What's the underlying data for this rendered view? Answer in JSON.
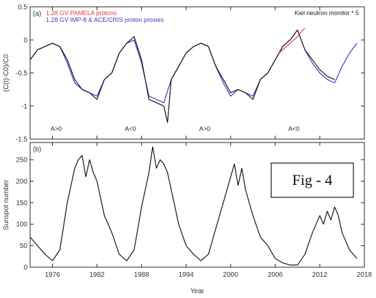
{
  "chart_data": [
    {
      "type": "line",
      "panel": "(a)",
      "ylabel": "(C(t)-C0)/C0",
      "xlim": [
        1973,
        2018
      ],
      "ylim": [
        -1.5,
        0.5
      ],
      "yticks": [
        "0.5",
        "0",
        "-0.5",
        "-1",
        "-1.5"
      ],
      "ytick_values": [
        0.5,
        0,
        -0.5,
        -1,
        -1.5
      ],
      "grid": false,
      "legend_position": "top",
      "legend": [
        {
          "label": "1.28 GV PAMELA protons",
          "color": "#e03a3a"
        },
        {
          "label": "1.28 GV IMP-8 & ACE/CRIS proton proxies",
          "color": "#3a3acc"
        }
      ],
      "annotation_top_right": "Kiel neutron monitor * 5",
      "polarity_labels": [
        {
          "text": "A>0",
          "x": 1976.5
        },
        {
          "text": "A<0",
          "x": 1986.5
        },
        {
          "text": "A>0",
          "x": 1996.5
        },
        {
          "text": "A<0",
          "x": 2008.5
        }
      ],
      "series": [
        {
          "name": "Kiel neutron monitor * 5",
          "color": "#111111",
          "x": [
            1973,
            1974,
            1975,
            1976,
            1977,
            1978,
            1979,
            1980,
            1981,
            1982,
            1983,
            1984,
            1985,
            1986,
            1987,
            1988,
            1989,
            1990,
            1991,
            1991.5,
            1992,
            1993,
            1994,
            1995,
            1996,
            1997,
            1998,
            1999,
            2000,
            2001,
            2002,
            2003,
            2004,
            2005,
            2006,
            2007,
            2008,
            2009,
            2010,
            2011,
            2012,
            2013,
            2014
          ],
          "y": [
            -0.3,
            -0.15,
            -0.1,
            -0.05,
            -0.1,
            -0.3,
            -0.6,
            -0.75,
            -0.8,
            -0.9,
            -0.6,
            -0.5,
            -0.2,
            -0.05,
            0.05,
            -0.3,
            -0.9,
            -0.95,
            -1.0,
            -1.25,
            -0.6,
            -0.4,
            -0.2,
            -0.1,
            -0.05,
            -0.1,
            -0.4,
            -0.6,
            -0.8,
            -0.75,
            -0.8,
            -0.9,
            -0.6,
            -0.5,
            -0.3,
            -0.1,
            0.0,
            0.15,
            -0.15,
            -0.3,
            -0.45,
            -0.55,
            -0.6
          ]
        },
        {
          "name": "1.28 GV IMP-8 & ACE/CRIS proton proxies",
          "color": "#3a3acc",
          "x": [
            1973,
            1974,
            1975,
            1976,
            1977,
            1978,
            1979,
            1980,
            1981,
            1982,
            1983,
            1984,
            1985,
            1986,
            1987,
            1988,
            1989,
            1990,
            1991,
            1992,
            1993,
            1994,
            1995,
            1996,
            1997,
            1998,
            1999,
            2000,
            2001,
            2002,
            2003,
            2004,
            2005,
            2006,
            2007,
            2008,
            2009,
            2010,
            2011,
            2012,
            2013,
            2014,
            2015,
            2016,
            2017
          ],
          "y": [
            -0.3,
            -0.15,
            -0.1,
            -0.05,
            -0.1,
            -0.35,
            -0.65,
            -0.75,
            -0.8,
            -0.85,
            -0.6,
            -0.5,
            -0.2,
            -0.05,
            0.0,
            -0.35,
            -0.85,
            -0.9,
            -0.95,
            -0.6,
            -0.4,
            -0.2,
            -0.1,
            -0.05,
            -0.1,
            -0.4,
            -0.65,
            -0.85,
            -0.75,
            -0.8,
            -0.85,
            -0.6,
            -0.5,
            -0.3,
            -0.1,
            0.0,
            0.15,
            -0.15,
            -0.35,
            -0.5,
            -0.6,
            -0.65,
            -0.4,
            -0.2,
            -0.05
          ]
        },
        {
          "name": "1.28 GV PAMELA protons",
          "color": "#e03a3a",
          "x": [
            2006.5,
            2007,
            2007.5,
            2008,
            2008.5,
            2009,
            2009.5,
            2010
          ],
          "y": [
            -0.2,
            -0.15,
            -0.1,
            -0.05,
            0.0,
            0.05,
            0.12,
            0.18
          ]
        }
      ]
    },
    {
      "type": "line",
      "panel": "(b)",
      "xlabel": "Year",
      "ylabel": "Sunspot number",
      "xlim": [
        1973,
        2018
      ],
      "ylim": [
        0,
        290
      ],
      "xticks": [
        "1976",
        "1982",
        "1988",
        "1994",
        "2000",
        "2006",
        "2012",
        "2018"
      ],
      "xtick_values": [
        1976,
        1982,
        1988,
        1994,
        2000,
        2006,
        2012,
        2018
      ],
      "yticks": [
        "250",
        "200",
        "150",
        "100",
        "50",
        "0"
      ],
      "ytick_values": [
        250,
        200,
        150,
        100,
        50,
        0
      ],
      "grid": false,
      "series": [
        {
          "name": "Sunspot number",
          "color": "#111111",
          "x": [
            1973,
            1974,
            1975,
            1976,
            1977,
            1978,
            1979,
            1979.5,
            1980,
            1980.5,
            1981,
            1981.5,
            1982,
            1982.5,
            1983,
            1984,
            1985,
            1986,
            1987,
            1988,
            1989,
            1989.5,
            1990,
            1990.5,
            1991,
            1991.5,
            1992,
            1993,
            1994,
            1995,
            1996,
            1997,
            1998,
            1999,
            2000,
            2000.5,
            2001,
            2001.5,
            2002,
            2003,
            2004,
            2005,
            2006,
            2007,
            2008,
            2009,
            2010,
            2011,
            2012,
            2012.5,
            2013,
            2013.5,
            2014,
            2014.5,
            2015,
            2016,
            2017
          ],
          "y": [
            70,
            50,
            30,
            15,
            40,
            150,
            230,
            250,
            260,
            210,
            250,
            220,
            200,
            160,
            120,
            80,
            30,
            15,
            40,
            140,
            220,
            280,
            230,
            250,
            240,
            220,
            180,
            100,
            50,
            30,
            15,
            30,
            90,
            150,
            210,
            240,
            190,
            230,
            180,
            120,
            70,
            50,
            20,
            10,
            5,
            5,
            30,
            80,
            120,
            100,
            130,
            110,
            140,
            120,
            80,
            40,
            20
          ]
        }
      ]
    }
  ],
  "figure_label": "Fig - 4"
}
